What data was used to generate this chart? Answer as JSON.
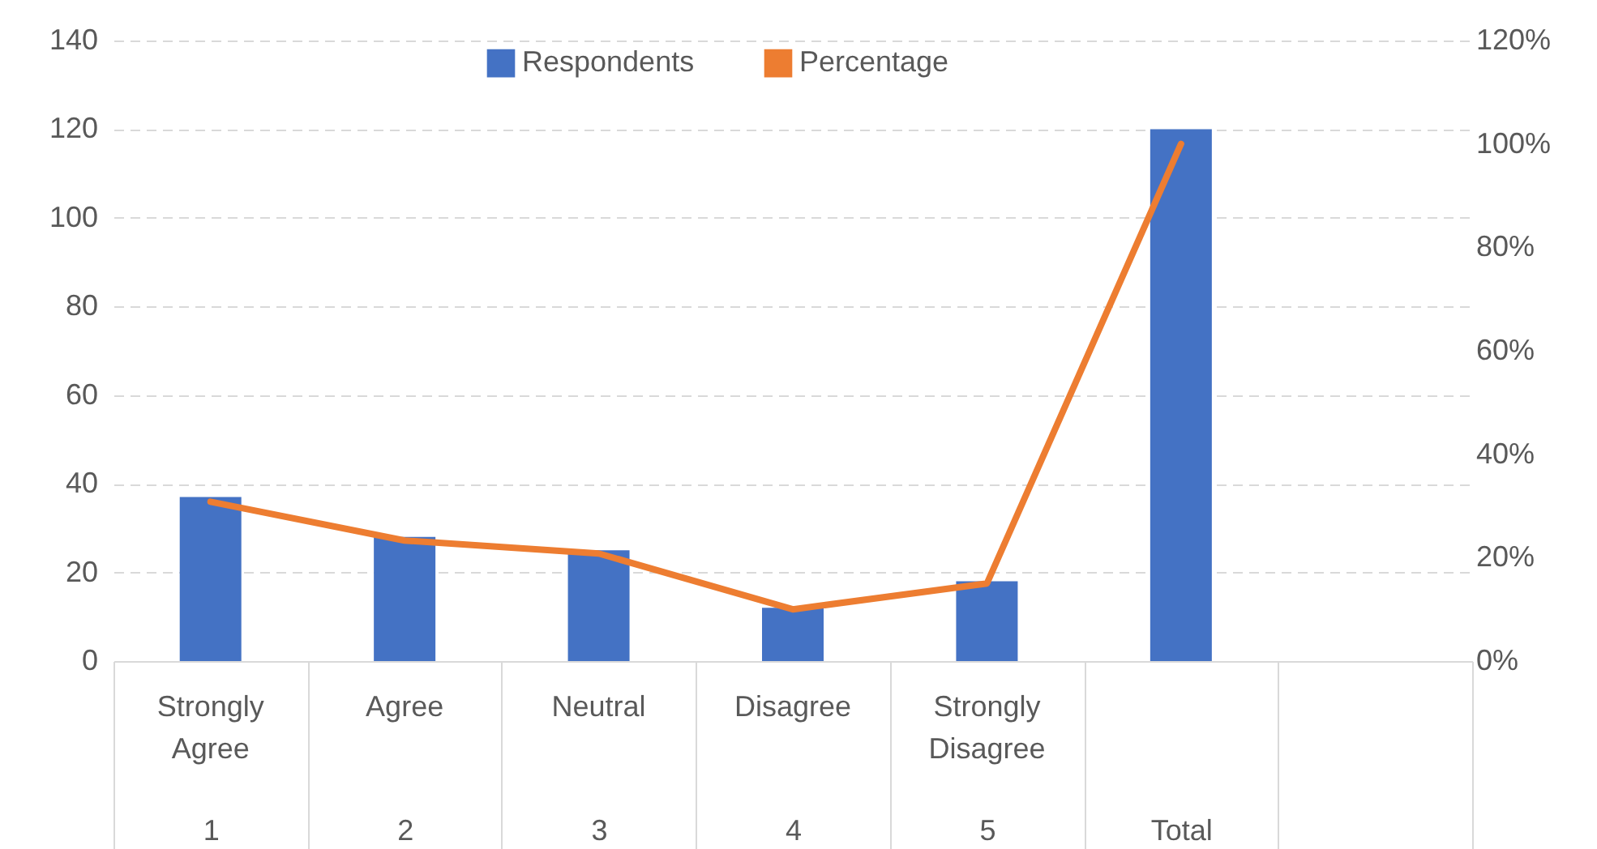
{
  "chart_data": {
    "type": "bar",
    "categories": [
      "1",
      "2",
      "3",
      "4",
      "5",
      "Total",
      null
    ],
    "series": [
      {
        "name": "Respondents",
        "color": "#4472c4",
        "values": [
          37,
          28,
          25,
          12,
          18,
          120,
          null
        ]
      },
      {
        "name": "Percentage",
        "type": "line",
        "axis": "y2",
        "color": "#ed7d31",
        "values": [
          30.8,
          23.3,
          20.8,
          10,
          15,
          100,
          null
        ]
      }
    ],
    "annotations": [
      "Strongly Agree",
      "Agree",
      "Neutral",
      "Disagree",
      "Strongly Disagree"
    ],
    "ylim": [
      0,
      140
    ],
    "yticks": [
      0,
      20,
      40,
      60,
      80,
      100,
      120,
      140
    ],
    "y2lim": [
      0,
      120
    ],
    "y2ticks": [
      {
        "value": 0,
        "label": "0%"
      },
      {
        "value": 20,
        "label": "20%"
      },
      {
        "value": 40,
        "label": "40%"
      },
      {
        "value": 60,
        "label": "60%"
      },
      {
        "value": 80,
        "label": "80%"
      },
      {
        "value": 100,
        "label": "100%"
      },
      {
        "value": 120,
        "label": "120%"
      }
    ],
    "grid": "y",
    "legend": "top",
    "marker": "none",
    "line_style": "solid"
  }
}
